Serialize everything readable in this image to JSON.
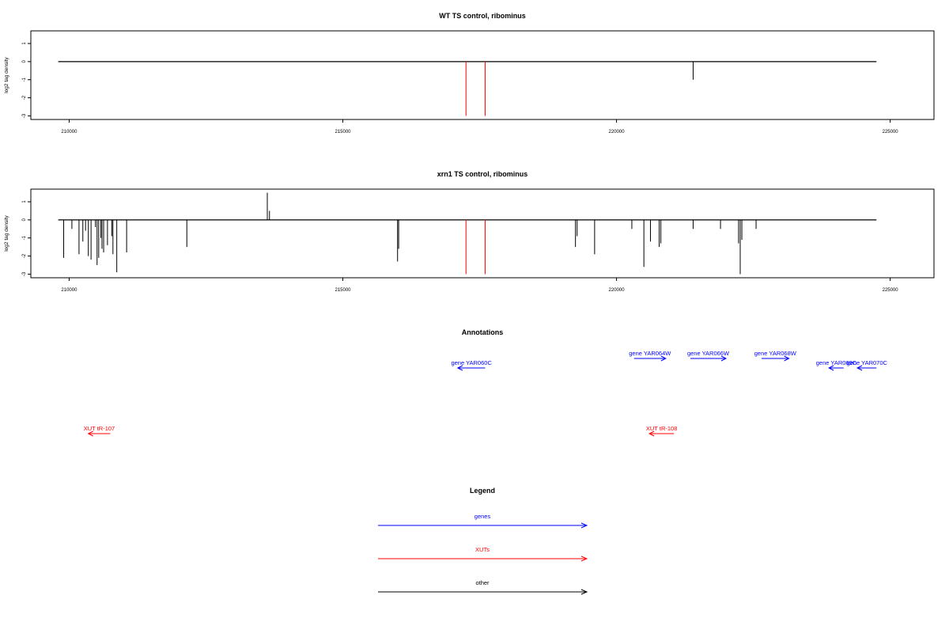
{
  "chart_data": [
    {
      "type": "bar",
      "title": "WT TS control, ribominus",
      "ylabel": "log2 tag density",
      "xlim": [
        209300,
        225800
      ],
      "ylim": [
        -3.2,
        1.7
      ],
      "xticks": [
        210000,
        215000,
        220000,
        225000
      ],
      "yticks": [
        -3,
        -2,
        -1,
        0,
        1
      ],
      "baseline": [
        209800,
        224750
      ],
      "highlight_color": "#ff0000",
      "highlights": [
        {
          "x": 217250,
          "y": -3
        },
        {
          "x": 217600,
          "y": -3
        }
      ],
      "bars": [
        {
          "x": 221400,
          "y": -1.0
        }
      ]
    },
    {
      "type": "bar",
      "title": "xrn1 TS control, ribominus",
      "ylabel": "log2 tag density",
      "xlim": [
        209300,
        225800
      ],
      "ylim": [
        -3.2,
        1.7
      ],
      "xticks": [
        210000,
        215000,
        220000,
        225000
      ],
      "yticks": [
        -3,
        -2,
        -1,
        0,
        1
      ],
      "baseline": [
        209800,
        224750
      ],
      "highlight_color": "#ff0000",
      "highlights": [
        {
          "x": 217250,
          "y": -3
        },
        {
          "x": 217600,
          "y": -3
        }
      ],
      "bars": [
        {
          "x": 209900,
          "y": -2.1
        },
        {
          "x": 210050,
          "y": -0.5
        },
        {
          "x": 210180,
          "y": -1.9
        },
        {
          "x": 210250,
          "y": -1.2
        },
        {
          "x": 210300,
          "y": -0.6
        },
        {
          "x": 210350,
          "y": -2.0
        },
        {
          "x": 210400,
          "y": -2.2
        },
        {
          "x": 210480,
          "y": -0.4
        },
        {
          "x": 210510,
          "y": -2.5
        },
        {
          "x": 210540,
          "y": -2.1
        },
        {
          "x": 210580,
          "y": -1.0
        },
        {
          "x": 210600,
          "y": -1.6
        },
        {
          "x": 210630,
          "y": -1.8
        },
        {
          "x": 210700,
          "y": -1.4
        },
        {
          "x": 210780,
          "y": -0.9
        },
        {
          "x": 210800,
          "y": -1.9
        },
        {
          "x": 210870,
          "y": -2.9
        },
        {
          "x": 211050,
          "y": -1.8
        },
        {
          "x": 212150,
          "y": -1.5
        },
        {
          "x": 213620,
          "y": 1.5
        },
        {
          "x": 213660,
          "y": 0.5
        },
        {
          "x": 216000,
          "y": -2.3
        },
        {
          "x": 216020,
          "y": -1.6
        },
        {
          "x": 219250,
          "y": -1.5
        },
        {
          "x": 219280,
          "y": -0.9
        },
        {
          "x": 219600,
          "y": -1.9
        },
        {
          "x": 220280,
          "y": -0.5
        },
        {
          "x": 220500,
          "y": -2.6
        },
        {
          "x": 220620,
          "y": -1.2
        },
        {
          "x": 220780,
          "y": -1.5
        },
        {
          "x": 220810,
          "y": -1.3
        },
        {
          "x": 221400,
          "y": -0.5
        },
        {
          "x": 221900,
          "y": -0.5
        },
        {
          "x": 222230,
          "y": -1.3
        },
        {
          "x": 222260,
          "y": -3.0
        },
        {
          "x": 222290,
          "y": -1.1
        },
        {
          "x": 222550,
          "y": -0.5
        }
      ]
    }
  ],
  "annotations": {
    "title": "Annotations",
    "features": [
      {
        "label": "gene YAR060C",
        "strand": "-",
        "start": 217100,
        "end": 217600,
        "kind": "gene",
        "row": 2
      },
      {
        "label": "gene YAR064W",
        "strand": "+",
        "start": 220320,
        "end": 220900,
        "kind": "gene",
        "row": 1
      },
      {
        "label": "gene YAR066W",
        "strand": "+",
        "start": 221350,
        "end": 222000,
        "kind": "gene",
        "row": 1
      },
      {
        "label": "gene YAR068W",
        "strand": "+",
        "start": 222650,
        "end": 223150,
        "kind": "gene",
        "row": 1
      },
      {
        "label": "gene YAR069C",
        "strand": "-",
        "start": 223880,
        "end": 224150,
        "kind": "gene",
        "row": 2
      },
      {
        "label": "gene YAR070C",
        "strand": "-",
        "start": 224400,
        "end": 224750,
        "kind": "gene",
        "row": 2
      },
      {
        "label": "XUT tR-107",
        "strand": "-",
        "start": 210350,
        "end": 210750,
        "kind": "xut",
        "row": 3
      },
      {
        "label": "XUT tR-108",
        "strand": "-",
        "start": 220600,
        "end": 221050,
        "kind": "xut",
        "row": 3
      }
    ]
  },
  "legend": {
    "title": "Legend",
    "items": [
      {
        "label": "genes",
        "color": "#0000ff"
      },
      {
        "label": "XUTs",
        "color": "#ff0000"
      },
      {
        "label": "other",
        "color": "#000000"
      }
    ]
  },
  "colors": {
    "gene": "#0000ff",
    "xut": "#ff0000",
    "other": "#000000",
    "axis": "#000000"
  }
}
